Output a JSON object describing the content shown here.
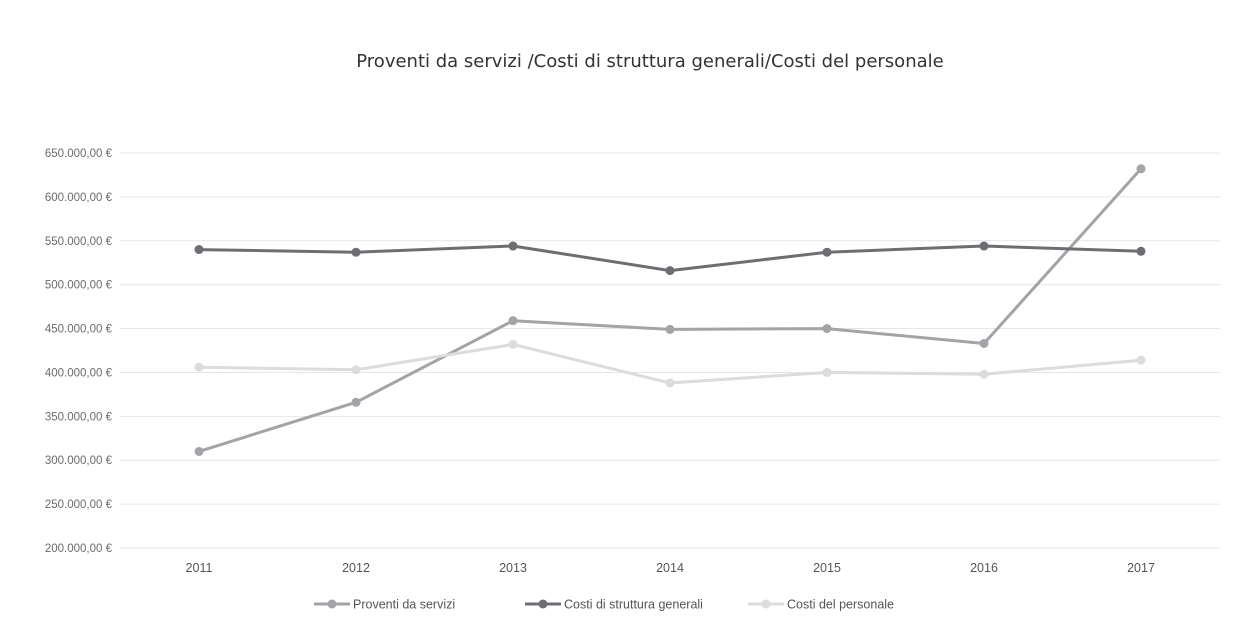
{
  "chart_data": {
    "type": "line",
    "title": "Proventi da servizi /Costi di struttura generali/Costi del personale",
    "xlabel": "",
    "ylabel": "",
    "categories": [
      "2011",
      "2012",
      "2013",
      "2014",
      "2015",
      "2016",
      "2017"
    ],
    "ylim": [
      200000,
      650000
    ],
    "yticks": [
      200000,
      250000,
      300000,
      350000,
      400000,
      450000,
      500000,
      550000,
      600000,
      650000
    ],
    "ytick_labels": [
      "200.000,00 €",
      "250.000,00 €",
      "300.000,00 €",
      "350.000,00 €",
      "400.000,00 €",
      "450.000,00 €",
      "500.000,00 €",
      "550.000,00 €",
      "600.000,00 €",
      "650.000,00 €"
    ],
    "grid": true,
    "legend_position": "bottom",
    "series": [
      {
        "name": "Proventi da servizi",
        "color": "#a3a3a8",
        "values": [
          310000,
          366000,
          459000,
          449000,
          450000,
          433000,
          632000
        ]
      },
      {
        "name": "Costi di struttura generali",
        "color": "#6e6e72",
        "values": [
          540000,
          537000,
          544000,
          516000,
          537000,
          544000,
          538000
        ]
      },
      {
        "name": "Costi del personale",
        "color": "#dcdcdf",
        "values": [
          406000,
          403000,
          432000,
          388000,
          400000,
          398000,
          414000
        ]
      }
    ]
  }
}
